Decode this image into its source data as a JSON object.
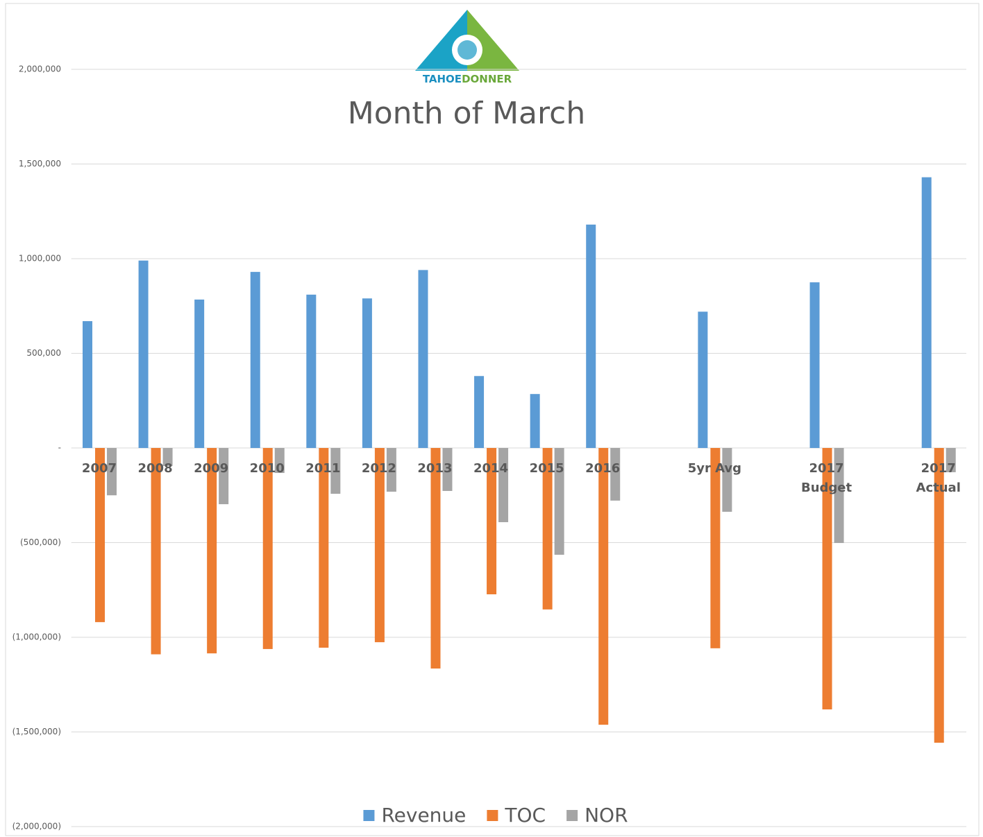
{
  "chart_data": {
    "type": "bar",
    "title": "Month of March",
    "logo_text": [
      "TAHOE",
      "DONNER"
    ],
    "categories": [
      "2007",
      "2008",
      "2009",
      "2010",
      "2011",
      "2012",
      "2013",
      "2014",
      "2015",
      "2016",
      null,
      "5yr Avg",
      null,
      "2017\nBudget",
      null,
      "2017\nActual"
    ],
    "series": [
      {
        "name": "Revenue",
        "color": "#5b9bd5",
        "values": [
          670000,
          990000,
          784000,
          930000,
          810000,
          790000,
          940000,
          380000,
          285000,
          1180000,
          null,
          720000,
          null,
          875000,
          null,
          1430000
        ]
      },
      {
        "name": "TOC",
        "color": "#ed7d31",
        "values": [
          -920000,
          -1090000,
          -1085000,
          -1062000,
          -1055000,
          -1026000,
          -1165000,
          -773000,
          -853000,
          -1462000,
          null,
          -1058000,
          null,
          -1381000,
          null,
          -1557000
        ]
      },
      {
        "name": "NOR",
        "color": "#a5a5a5",
        "values": [
          -250000,
          -95000,
          -297000,
          -132000,
          -242000,
          -231000,
          -227000,
          -392000,
          -564000,
          -278000,
          null,
          -337000,
          null,
          -502000,
          null,
          -128000
        ]
      }
    ],
    "ylim": [
      -2000000,
      2000000
    ],
    "yticks": [
      {
        "value": -2000000,
        "label": "(2,000,000)"
      },
      {
        "value": -1500000,
        "label": "(1,500,000)"
      },
      {
        "value": -1000000,
        "label": "(1,000,000)"
      },
      {
        "value": -500000,
        "label": "(500,000)"
      },
      {
        "value": 0,
        "label": "-"
      },
      {
        "value": 500000,
        "label": "500,000"
      },
      {
        "value": 1000000,
        "label": "1,000,000"
      },
      {
        "value": 1500000,
        "label": "1,500,000"
      },
      {
        "value": 2000000,
        "label": "2,000,000"
      }
    ],
    "grid": true,
    "legend": "bottom"
  }
}
